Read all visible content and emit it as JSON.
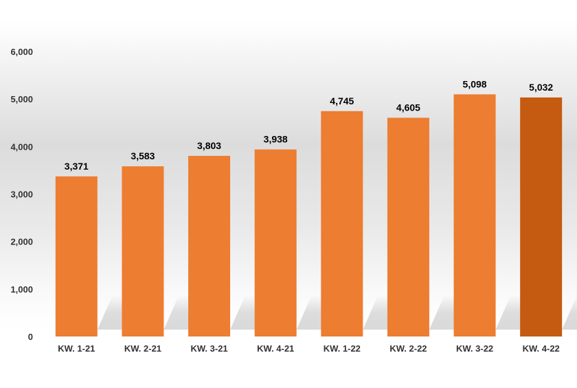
{
  "chart_data": {
    "type": "bar",
    "title": "",
    "xlabel": "",
    "ylabel": "",
    "ylim": [
      0,
      6000
    ],
    "yticks": [
      0,
      1000,
      2000,
      3000,
      4000,
      5000,
      6000
    ],
    "ytick_labels": [
      "0",
      "1,000",
      "2,000",
      "3,000",
      "4,000",
      "5,000",
      "6,000"
    ],
    "grid": false,
    "legend": "none",
    "categories": [
      "KW. 1-21",
      "KW. 2-21",
      "KW. 3-21",
      "KW. 4-21",
      "KW. 1-22",
      "KW. 2-22",
      "KW. 3-22",
      "KW. 4-22"
    ],
    "values": [
      3371,
      3583,
      3803,
      3938,
      4745,
      4605,
      5098,
      5032
    ],
    "value_labels": [
      "3,371",
      "3,583",
      "3,803",
      "3,938",
      "4,745",
      "4,605",
      "5,098",
      "5,032"
    ],
    "colors": {
      "bar": "#ed7d31",
      "highlight_bar": "#c55a11",
      "text": "#000000",
      "axis_text": "#333333"
    },
    "highlight_index": 7
  }
}
